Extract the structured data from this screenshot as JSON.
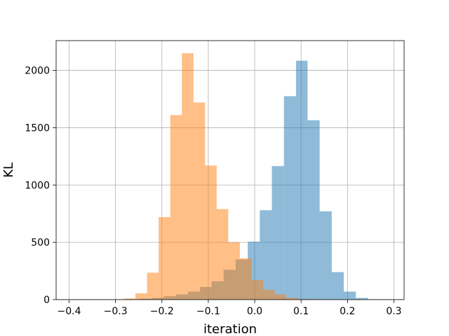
{
  "chart_data": {
    "type": "bar",
    "title": "",
    "xlabel": "iteration",
    "ylabel": "KL",
    "xlim": [
      -0.428,
      0.322
    ],
    "ylim": [
      0,
      2260
    ],
    "grid": true,
    "legend": "none",
    "x_ticks": [
      -0.4,
      -0.3,
      -0.2,
      -0.1,
      0.0,
      0.1,
      0.2,
      0.3
    ],
    "x_tick_labels": [
      "−0.4",
      "−0.3",
      "−0.2",
      "−0.1",
      "0.0",
      "0.1",
      "0.2",
      "0.3"
    ],
    "y_ticks": [
      0,
      500,
      1000,
      1500,
      2000
    ],
    "y_tick_labels": [
      "0",
      "500",
      "1000",
      "1500",
      "2000"
    ],
    "series": [
      {
        "color": "#1f77b4",
        "opacity": 0.5,
        "bin_edges": [
          -0.403,
          -0.377,
          -0.351,
          -0.325,
          -0.3,
          -0.274,
          -0.248,
          -0.222,
          -0.196,
          -0.17,
          -0.144,
          -0.118,
          -0.093,
          -0.067,
          -0.041,
          -0.015,
          0.011,
          0.037,
          0.063,
          0.089,
          0.114,
          0.14,
          0.166,
          0.192,
          0.218,
          0.244,
          0.27
        ],
        "counts": [
          1,
          0,
          1,
          1,
          2,
          3,
          8,
          15,
          30,
          45,
          70,
          110,
          160,
          260,
          350,
          505,
          780,
          1165,
          1775,
          2085,
          1565,
          770,
          240,
          70,
          15,
          3
        ]
      },
      {
        "color": "#ff7f0e",
        "opacity": 0.5,
        "bin_edges": [
          -0.282,
          -0.257,
          -0.232,
          -0.207,
          -0.182,
          -0.157,
          -0.132,
          -0.107,
          -0.082,
          -0.057,
          -0.032,
          -0.007,
          0.018,
          0.043,
          0.068,
          0.093,
          0.118
        ],
        "counts": [
          10,
          55,
          235,
          720,
          1610,
          2150,
          1720,
          1170,
          790,
          500,
          360,
          170,
          85,
          45,
          15,
          5
        ]
      }
    ]
  }
}
